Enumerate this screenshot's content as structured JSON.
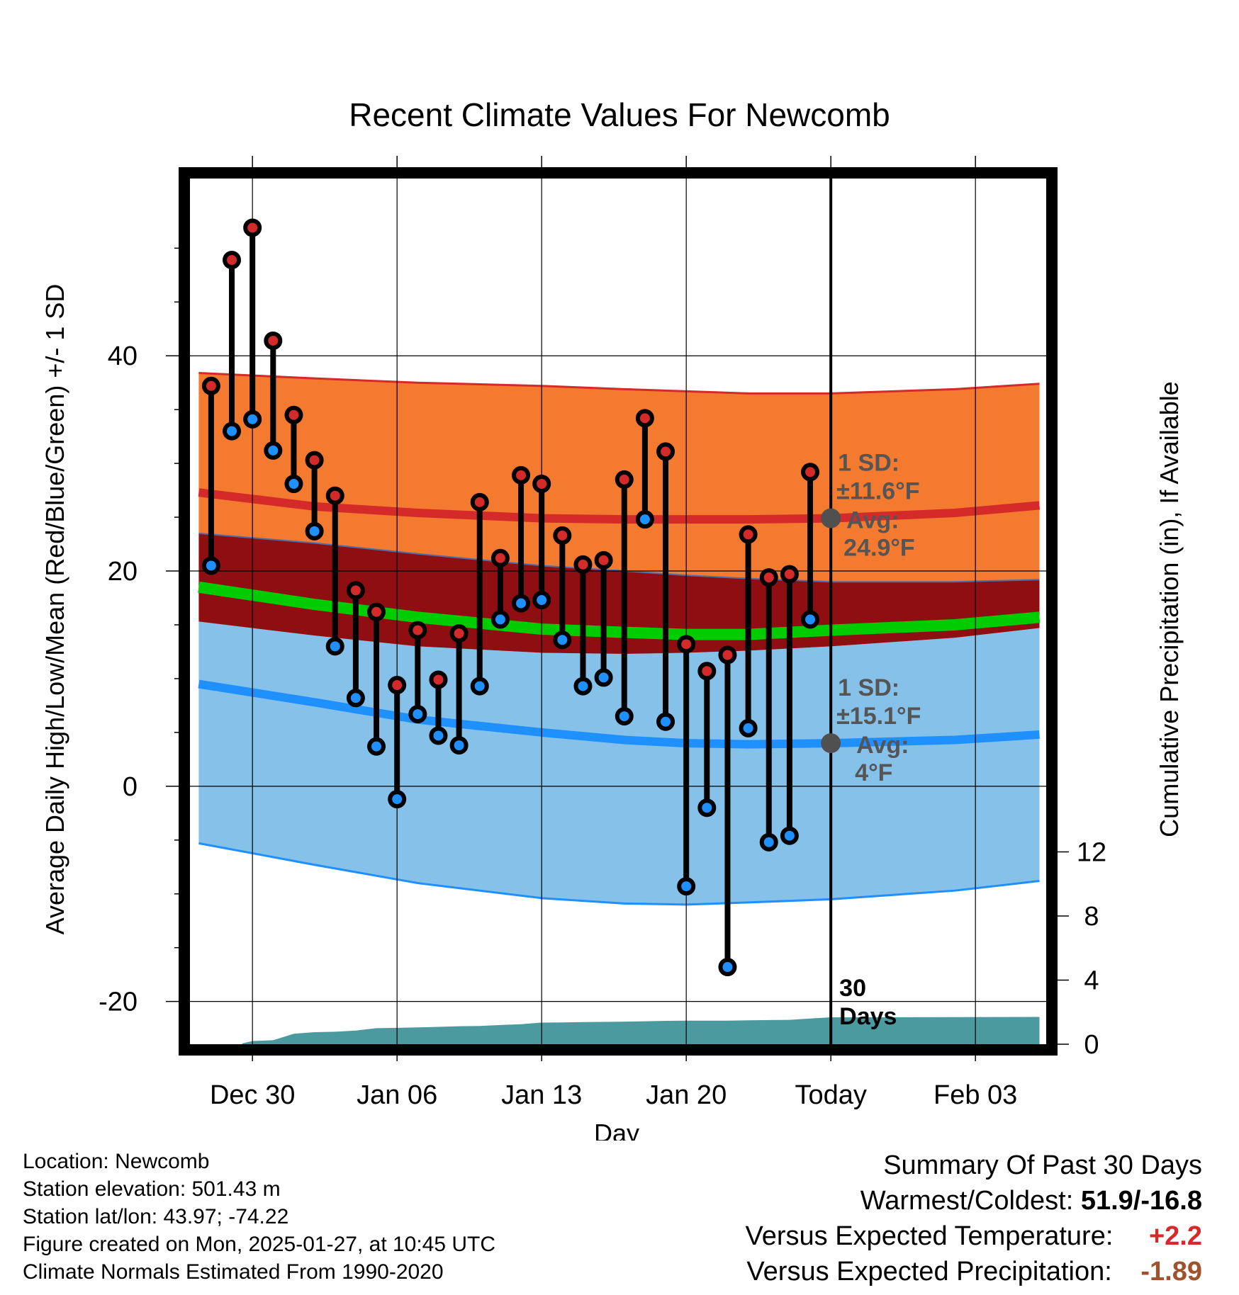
{
  "chart_data": {
    "type": "line",
    "title": "Recent Climate Values For Newcomb",
    "xlabel": "Day",
    "ylabel": "Average Daily High/Low/Mean (Red/Blue/Green) +/- 1 SD",
    "ylabel_right": "Cumulative Precipitation (in), If Available",
    "ylim": [
      -24.5,
      57
    ],
    "ylim_right": [
      0,
      19.4
    ],
    "xlim": [
      -3.3,
      38.7
    ],
    "x_origin_date": "Dec 30",
    "x_ticks": [
      {
        "x": 0,
        "label": "Dec 30"
      },
      {
        "x": 7,
        "label": "Jan 06"
      },
      {
        "x": 14,
        "label": "Jan 13"
      },
      {
        "x": 21,
        "label": "Jan 20"
      },
      {
        "x": 28,
        "label": "Today"
      },
      {
        "x": 35,
        "label": "Feb 03"
      }
    ],
    "y_ticks": [
      -20,
      0,
      20,
      40
    ],
    "y_ticks_right": [
      0,
      4,
      8,
      12
    ],
    "today_x": 28,
    "grid": true,
    "days_label": [
      "30",
      "Days"
    ],
    "normals_x": [
      -2.6,
      3,
      8,
      14,
      18,
      21,
      24,
      28,
      34,
      38.1
    ],
    "normal_high_sd_upper": [
      38.4,
      37.9,
      37.5,
      37.2,
      36.9,
      36.7,
      36.5,
      36.5,
      36.9,
      37.4
    ],
    "normal_high": [
      27.3,
      26.0,
      25.4,
      24.9,
      24.8,
      24.8,
      24.8,
      24.9,
      25.4,
      26.1
    ],
    "normal_high_sd_lower": [
      23.5,
      22.6,
      21.6,
      20.5,
      20.0,
      19.6,
      19.3,
      19.0,
      19.0,
      19.2
    ],
    "normal_mean": [
      18.5,
      16.9,
      15.7,
      14.6,
      14.3,
      14.1,
      14.1,
      14.5,
      15.0,
      15.7
    ],
    "normal_low_sd_upper": [
      15.3,
      14.0,
      13.0,
      12.4,
      12.3,
      12.4,
      12.6,
      13.0,
      13.8,
      14.7
    ],
    "normal_low": [
      9.5,
      7.8,
      6.2,
      5.0,
      4.3,
      4.0,
      3.9,
      4.0,
      4.3,
      4.8
    ],
    "normal_low_sd_lower": [
      -5.3,
      -7.3,
      -9.0,
      -10.4,
      -10.9,
      -11.0,
      -10.8,
      -10.5,
      -9.7,
      -8.8
    ],
    "series": [
      {
        "name": "Daily High",
        "x": [
          -2,
          -1,
          0,
          1,
          2,
          3,
          4,
          5,
          6,
          7,
          8,
          9,
          10,
          11,
          12,
          13,
          14,
          15,
          16,
          17,
          18,
          19,
          20,
          21,
          22,
          23,
          24,
          25,
          26,
          27
        ],
        "values": [
          37.2,
          48.9,
          51.9,
          41.4,
          34.5,
          30.3,
          27.0,
          18.2,
          16.2,
          9.4,
          14.5,
          9.9,
          14.2,
          26.4,
          21.2,
          28.9,
          28.1,
          23.3,
          20.6,
          21.0,
          28.5,
          34.2,
          31.1,
          13.2,
          10.7,
          12.2,
          23.4,
          19.4,
          19.7,
          29.2
        ]
      },
      {
        "name": "Daily Low",
        "x": [
          -2,
          -1,
          0,
          1,
          2,
          3,
          4,
          5,
          6,
          7,
          8,
          9,
          10,
          11,
          12,
          13,
          14,
          15,
          16,
          17,
          18,
          19,
          20,
          21,
          22,
          23,
          24,
          25,
          26,
          27
        ],
        "values": [
          20.5,
          33.0,
          34.1,
          31.2,
          28.1,
          23.7,
          13.0,
          8.2,
          3.7,
          -1.2,
          6.7,
          4.7,
          3.8,
          9.3,
          15.5,
          17.0,
          17.3,
          13.6,
          9.3,
          10.1,
          6.5,
          24.8,
          6.0,
          -9.3,
          -2.0,
          -16.8,
          5.4,
          -5.2,
          -4.6,
          15.5
        ]
      },
      {
        "name": "Cumulative Precipitation",
        "x": [
          -0.5,
          0,
          1,
          2,
          3,
          4,
          5,
          6,
          7,
          8,
          9,
          10,
          11,
          12,
          13,
          14,
          15,
          16,
          17,
          18,
          19,
          20,
          21,
          22,
          23,
          24,
          25,
          26,
          27,
          28,
          34,
          38.1
        ],
        "values": [
          0.05,
          0.2,
          0.25,
          0.65,
          0.75,
          0.78,
          0.85,
          1.0,
          1.02,
          1.05,
          1.08,
          1.12,
          1.14,
          1.2,
          1.25,
          1.35,
          1.36,
          1.38,
          1.39,
          1.41,
          1.43,
          1.46,
          1.47,
          1.47,
          1.47,
          1.49,
          1.51,
          1.52,
          1.6,
          1.68,
          1.69,
          1.7
        ]
      }
    ],
    "annotations": {
      "high": {
        "point": 24.9,
        "lines": [
          "1 SD:",
          "±11.6°F",
          "Avg:",
          "24.9°F"
        ]
      },
      "low": {
        "point": 4.0,
        "lines": [
          "1 SD:",
          "±15.1°F",
          "Avg:",
          "4°F"
        ]
      }
    },
    "colors": {
      "high_band": "#f47a30",
      "high_line": "#d42a2a",
      "overlap_band": "#8e0e12",
      "mean_line": "#00cc00",
      "low_band": "#85c1e9",
      "low_line": "#1e90ff",
      "high_marker": "#d42a2a",
      "low_marker": "#1e90ff",
      "precip_fill": "#4a9aa0",
      "annotation_point": "#505050"
    }
  },
  "info": {
    "location": "Location: Newcomb",
    "elevation": "Station elevation: 501.43 m",
    "latlon": "Station lat/lon: 43.97; -74.22",
    "created": "Figure created on Mon, 2025-01-27, at 10:45 UTC",
    "normals": "Climate Normals Estimated From 1990-2020"
  },
  "summary": {
    "heading": "Summary Of Past 30 Days",
    "warm_cold_label": "Warmest/Coldest:",
    "warm_cold_value": "51.9/-16.8",
    "temp_label": "Versus Expected Temperature:",
    "temp_value": "+2.2",
    "precip_label": "Versus Expected Precipitation:",
    "precip_value": "-1.89"
  }
}
